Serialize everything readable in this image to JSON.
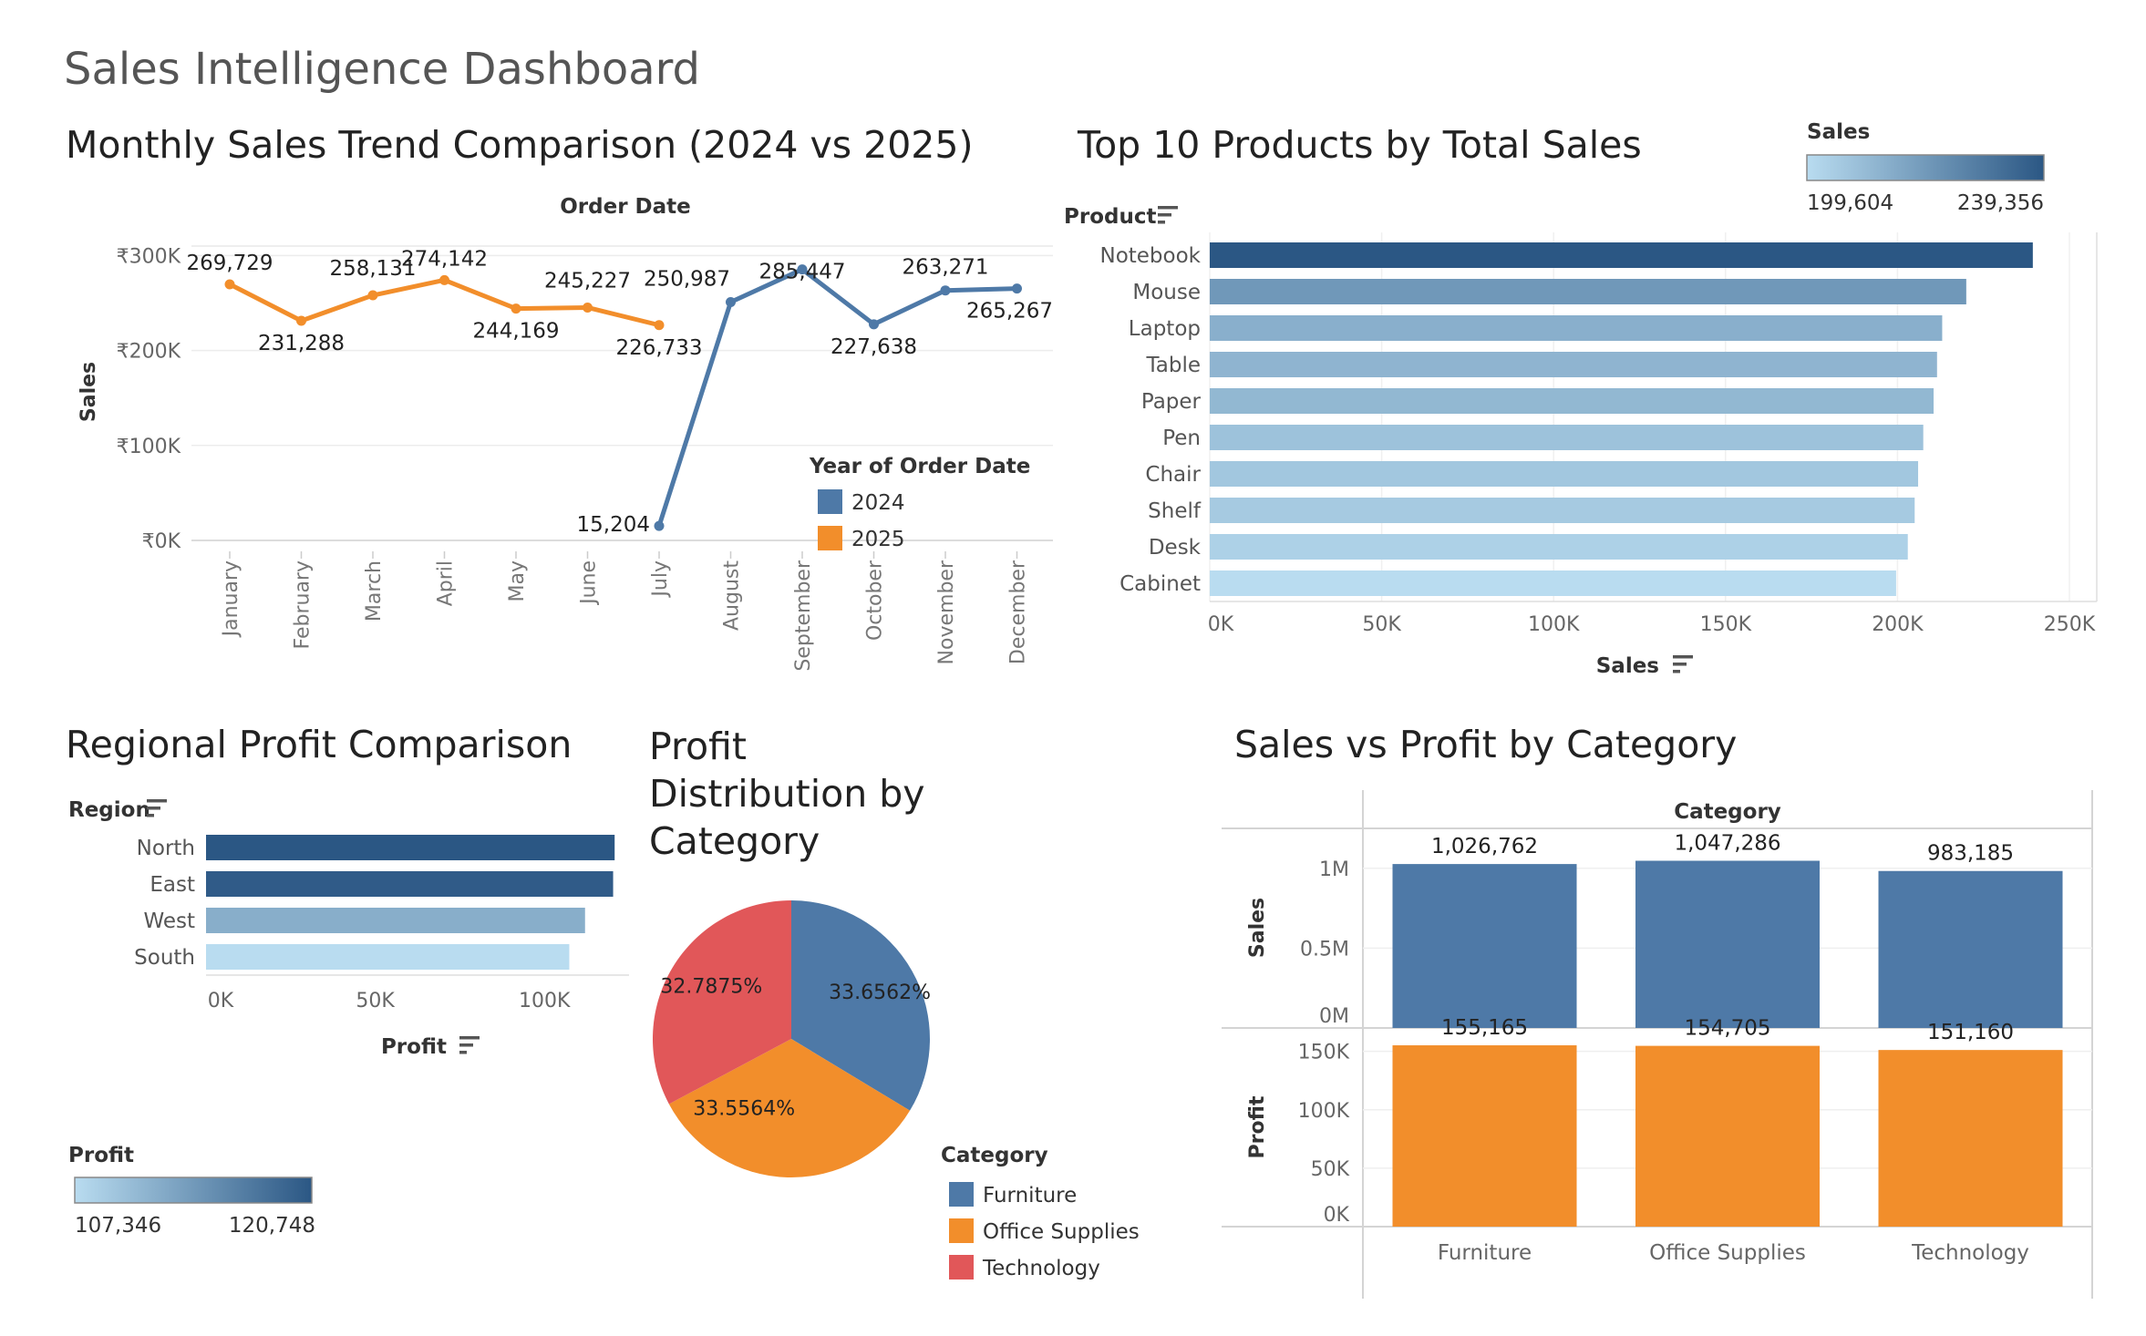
{
  "dashboard": {
    "title": "Sales Intelligence Dashboard"
  },
  "monthly": {
    "title": "Monthly Sales Trend Comparison (2024 vs 2025)",
    "x_header": "Order Date",
    "y_label": "Sales",
    "legend_title": "Year of Order Date",
    "colors": {
      "2024": "#4e79a7",
      "2025": "#f28e2b"
    },
    "chart_data": {
      "type": "line",
      "categories": [
        "January",
        "February",
        "March",
        "April",
        "May",
        "June",
        "July",
        "August",
        "September",
        "October",
        "November",
        "December"
      ],
      "ylim": [
        0,
        310000
      ],
      "yticks": [
        0,
        100000,
        200000,
        300000
      ],
      "ytick_labels": [
        "₹0K",
        "₹100K",
        "₹200K",
        "₹300K"
      ],
      "series": [
        {
          "name": "2024",
          "values": [
            null,
            null,
            null,
            null,
            null,
            null,
            15204,
            250987,
            285447,
            227638,
            263271,
            265267
          ],
          "labels": [
            "",
            "",
            "",
            "",
            "",
            "",
            "15,204",
            "250,987",
            "285,447",
            "227,638",
            "263,271",
            "265,267"
          ]
        },
        {
          "name": "2025",
          "values": [
            269729,
            231288,
            258131,
            274142,
            244169,
            245227,
            226733,
            null,
            null,
            null,
            null,
            null
          ],
          "labels": [
            "269,729",
            "231,288",
            "258,131",
            "274,142",
            "244,169",
            "245,227",
            "226,733",
            "",
            "",
            "",
            "",
            ""
          ]
        }
      ],
      "legend": "right"
    }
  },
  "top10": {
    "title": "Top 10 Products by Total Sales",
    "header": "Product",
    "x_label": "Sales",
    "legend_title": "Sales",
    "legend_min": "199,604",
    "legend_max": "239,356",
    "colors": {
      "low": "#b9dcf0",
      "high": "#2b5784"
    },
    "chart_data": {
      "type": "bar",
      "orientation": "horizontal",
      "categories": [
        "Notebook",
        "Mouse",
        "Laptop",
        "Table",
        "Paper",
        "Pen",
        "Chair",
        "Shelf",
        "Desk",
        "Cabinet"
      ],
      "values": [
        239356,
        220000,
        213000,
        211500,
        210500,
        207500,
        206000,
        205000,
        203000,
        199604
      ],
      "xlim": [
        0,
        250000
      ],
      "xticks": [
        0,
        50000,
        100000,
        150000,
        200000,
        250000
      ],
      "xtick_labels": [
        "0K",
        "50K",
        "100K",
        "150K",
        "200K",
        "250K"
      ],
      "xlabel": "Sales"
    }
  },
  "regional": {
    "title": "Regional Profit Comparison",
    "header": "Region",
    "x_label": "Profit",
    "legend_title": "Profit",
    "legend_min": "107,346",
    "legend_max": "120,748",
    "colors": {
      "low": "#b9dcf0",
      "high": "#2b5784"
    },
    "chart_data": {
      "type": "bar",
      "orientation": "horizontal",
      "categories": [
        "North",
        "East",
        "West",
        "South"
      ],
      "values": [
        120748,
        120300,
        112000,
        107346
      ],
      "xlim": [
        0,
        125000
      ],
      "xticks": [
        0,
        50000,
        100000
      ],
      "xtick_labels": [
        "0K",
        "50K",
        "100K"
      ],
      "xlabel": "Profit"
    }
  },
  "pie": {
    "title_lines": [
      "Profit",
      "Distribution by",
      "Category"
    ],
    "legend_title": "Category",
    "chart_data": {
      "type": "pie",
      "categories": [
        "Furniture",
        "Office Supplies",
        "Technology"
      ],
      "values": [
        33.6562,
        33.5564,
        32.7875
      ],
      "labels": [
        "33.6562%",
        "33.5564%",
        "32.7875%"
      ],
      "colors": [
        "#4e79a7",
        "#f28e2b",
        "#e15759"
      ]
    }
  },
  "sales_profit": {
    "title": "Sales vs Profit by Category",
    "header": "Category",
    "colors": {
      "sales": "#4e79a7",
      "profit": "#f28e2b"
    },
    "chart_data": [
      {
        "type": "bar",
        "categories": [
          "Furniture",
          "Office Supplies",
          "Technology"
        ],
        "values": [
          1026762,
          1047286,
          983185
        ],
        "labels": [
          "1,026,762",
          "1,047,286",
          "983,185"
        ],
        "ylabel": "Sales",
        "ylim": [
          0,
          1250000
        ],
        "yticks": [
          0,
          500000,
          1000000
        ],
        "ytick_labels": [
          "0M",
          "0.5M",
          "1M"
        ]
      },
      {
        "type": "bar",
        "categories": [
          "Furniture",
          "Office Supplies",
          "Technology"
        ],
        "values": [
          155165,
          154705,
          151160
        ],
        "labels": [
          "155,165",
          "154,705",
          "151,160"
        ],
        "ylabel": "Profit",
        "ylim": [
          0,
          170000
        ],
        "yticks": [
          0,
          50000,
          100000,
          150000
        ],
        "ytick_labels": [
          "0K",
          "50K",
          "100K",
          "150K"
        ]
      }
    ]
  }
}
